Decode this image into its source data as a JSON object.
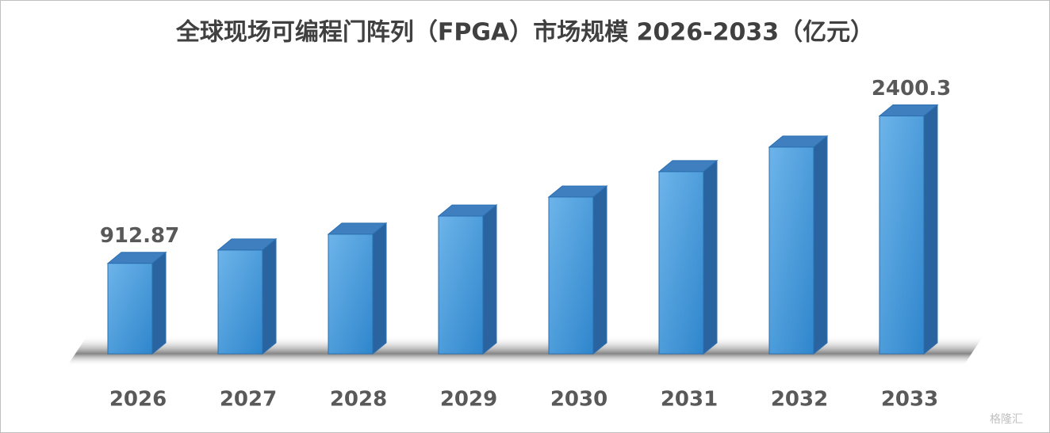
{
  "chart_data": {
    "type": "bar3d",
    "title": "全球现场可编程门阵列（FPGA）市场规模 2026-2033（亿元）",
    "categories": [
      "2026",
      "2027",
      "2028",
      "2029",
      "2030",
      "2031",
      "2032",
      "2033"
    ],
    "values": [
      912.87,
      1047,
      1207,
      1390,
      1582,
      1838,
      2086,
      2400.3
    ],
    "value_labels": [
      "912.87",
      null,
      null,
      null,
      null,
      null,
      null,
      "2400.3"
    ],
    "color": "#4a9ee0",
    "ylim": [
      0,
      2600
    ],
    "watermark": "格隆汇"
  }
}
